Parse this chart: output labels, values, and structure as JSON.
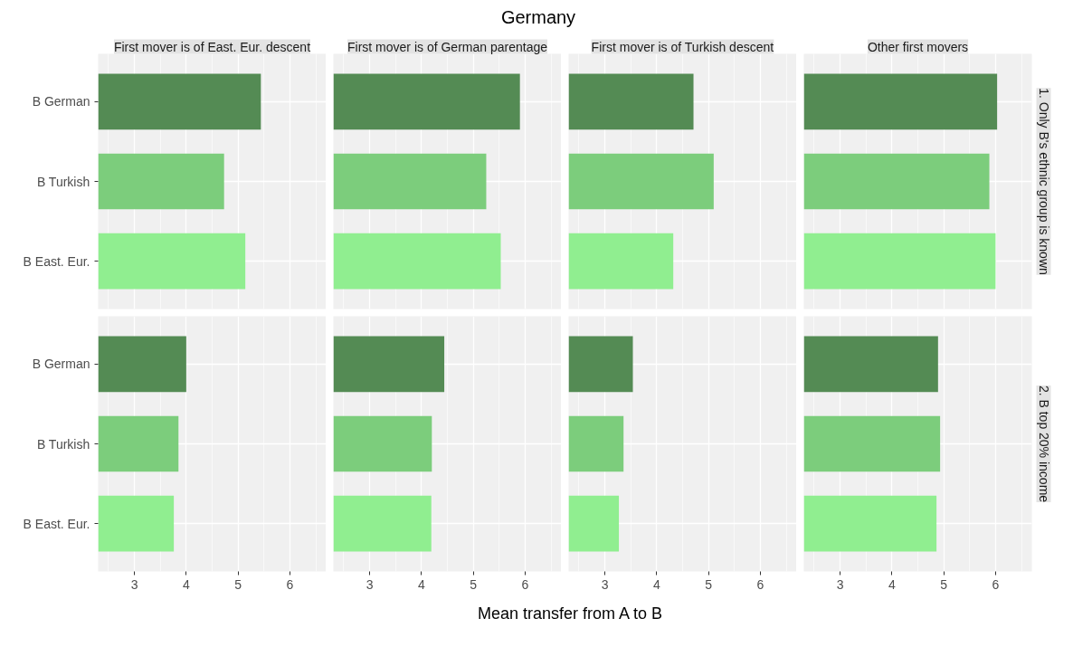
{
  "chart_data": [
    {
      "type": "bar",
      "orientation": "horizontal",
      "title": "First mover is of East. Eur. descent",
      "annotations": [
        "Germany",
        "Mean transfer from A to B"
      ],
      "categories": [
        "B German",
        "B Turkish",
        "B East. Eur."
      ],
      "values": [
        5.44,
        4.73,
        5.14
      ],
      "colors": [
        "#548b54",
        "#7ccd7c",
        "#90ee90"
      ],
      "xlim": [
        2.3,
        6.7
      ],
      "xticks": [
        3,
        4,
        5,
        6
      ],
      "grid": true,
      "tick_labels": "y"
    },
    {
      "type": "bar",
      "orientation": "horizontal",
      "title": "First mover is of German parentage",
      "categories": [
        "B German",
        "B Turkish",
        "B East. Eur."
      ],
      "values": [
        5.9,
        5.25,
        5.53
      ],
      "colors": [
        "#548b54",
        "#7ccd7c",
        "#90ee90"
      ],
      "xlim": [
        2.3,
        6.7
      ],
      "xticks": [
        3,
        4,
        5,
        6
      ],
      "grid": true,
      "tick_labels": false
    },
    {
      "type": "bar",
      "orientation": "horizontal",
      "title": "First mover is of Turkish descent",
      "categories": [
        "B German",
        "B Turkish",
        "B East. Eur."
      ],
      "values": [
        4.71,
        5.1,
        4.32
      ],
      "colors": [
        "#548b54",
        "#7ccd7c",
        "#90ee90"
      ],
      "xlim": [
        2.3,
        6.7
      ],
      "xticks": [
        3,
        4,
        5,
        6
      ],
      "grid": true,
      "tick_labels": false
    },
    {
      "type": "bar",
      "orientation": "horizontal",
      "title": "Other first movers",
      "y2label": "1. Only B's ethnic group is known",
      "categories": [
        "B German",
        "B Turkish",
        "B East. Eur."
      ],
      "values": [
        6.03,
        5.88,
        6.0
      ],
      "colors": [
        "#548b54",
        "#7ccd7c",
        "#90ee90"
      ],
      "xlim": [
        2.3,
        6.7
      ],
      "xticks": [
        3,
        4,
        5,
        6
      ],
      "grid": true,
      "tick_labels": false
    },
    {
      "type": "bar",
      "orientation": "horizontal",
      "categories": [
        "B German",
        "B Turkish",
        "B East. Eur."
      ],
      "values": [
        4.0,
        3.85,
        3.76
      ],
      "colors": [
        "#548b54",
        "#7ccd7c",
        "#90ee90"
      ],
      "xlim": [
        2.3,
        6.7
      ],
      "xticks": [
        3,
        4,
        5,
        6
      ],
      "grid": true
    },
    {
      "type": "bar",
      "orientation": "horizontal",
      "categories": [
        "B German",
        "B Turkish",
        "B East. Eur."
      ],
      "values": [
        4.44,
        4.2,
        4.19
      ],
      "colors": [
        "#548b54",
        "#7ccd7c",
        "#90ee90"
      ],
      "xlim": [
        2.3,
        6.7
      ],
      "xticks": [
        3,
        4,
        5,
        6
      ],
      "grid": true,
      "tick_labels": "x"
    },
    {
      "type": "bar",
      "orientation": "horizontal",
      "categories": [
        "B German",
        "B Turkish",
        "B East. Eur."
      ],
      "values": [
        3.54,
        3.36,
        3.27
      ],
      "colors": [
        "#548b54",
        "#7ccd7c",
        "#90ee90"
      ],
      "xlim": [
        2.3,
        6.7
      ],
      "xticks": [
        3,
        4,
        5,
        6
      ],
      "grid": true,
      "tick_labels": "x"
    },
    {
      "type": "bar",
      "orientation": "horizontal",
      "y2label": "2. B top 20% income",
      "categories": [
        "B German",
        "B Turkish",
        "B East. Eur."
      ],
      "values": [
        4.89,
        4.93,
        4.86
      ],
      "colors": [
        "#548b54",
        "#7ccd7c",
        "#90ee90"
      ],
      "xlim": [
        2.3,
        6.7
      ],
      "xticks": [
        3,
        4,
        5,
        6
      ],
      "grid": true,
      "tick_labels": "x"
    }
  ]
}
